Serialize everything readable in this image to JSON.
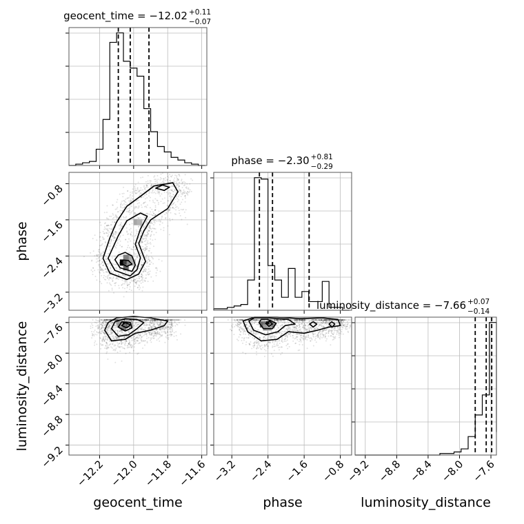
{
  "chart_data": {
    "type": "corner",
    "grid": true,
    "parameters": [
      {
        "name": "geocent_time",
        "median": -12.02,
        "err_plus": 0.11,
        "err_minus": 0.07,
        "title_text": "geocent_time = −12.02",
        "sup_text": "+0.11",
        "sub_text": "−0.07",
        "range": [
          -12.38,
          -11.57
        ],
        "quantile_lines": [
          -12.09,
          -12.02,
          -11.91
        ],
        "ticks": [
          -12.2,
          -12.0,
          -11.8,
          -11.6
        ],
        "tick_labels": [
          "−12.2",
          "−12.0",
          "−11.8",
          "−11.6"
        ],
        "hist": {
          "bins": [
            -12.38,
            -12.34,
            -12.3,
            -12.26,
            -12.22,
            -12.18,
            -12.14,
            -12.1,
            -12.06,
            -12.02,
            -11.98,
            -11.94,
            -11.9,
            -11.86,
            -11.82,
            -11.78,
            -11.74,
            -11.7,
            -11.66,
            -11.62,
            -11.58
          ],
          "counts": [
            0,
            1,
            2,
            3,
            12,
            34,
            91,
            98,
            77,
            72,
            66,
            42,
            25,
            14,
            10,
            6,
            4,
            2,
            1,
            0
          ]
        }
      },
      {
        "name": "phase",
        "median": -2.3,
        "err_plus": 0.81,
        "err_minus": 0.29,
        "title_text": "phase = −2.30",
        "sup_text": "+0.81",
        "sub_text": "−0.29",
        "range": [
          -3.6,
          -0.55
        ],
        "quantile_lines": [
          -2.59,
          -2.3,
          -1.49
        ],
        "ticks": [
          -3.2,
          -2.4,
          -1.6,
          -0.8
        ],
        "tick_labels": [
          "−3.2",
          "−2.4",
          "−1.6",
          "−0.8"
        ],
        "hist": {
          "bins": [
            -3.6,
            -3.45,
            -3.3,
            -3.15,
            -3.0,
            -2.85,
            -2.7,
            -2.55,
            -2.4,
            -2.25,
            -2.1,
            -1.95,
            -1.8,
            -1.65,
            -1.5,
            -1.35,
            -1.2,
            -1.05,
            -0.9,
            -0.75,
            -0.6
          ],
          "counts": [
            1,
            1,
            2,
            3,
            4,
            21,
            92,
            91,
            31,
            21,
            9,
            29,
            9,
            13,
            6,
            6,
            20,
            2,
            2,
            0
          ]
        }
      },
      {
        "name": "luminosity_distance",
        "median": -7.66,
        "err_plus": 0.07,
        "err_minus": 0.14,
        "title_text": "luminosity_distance = −7.66",
        "sup_text": "+0.07",
        "sub_text": "−0.14",
        "range": [
          -9.33,
          -7.53
        ],
        "quantile_lines": [
          -7.8,
          -7.66,
          -7.59
        ],
        "ticks": [
          -9.2,
          -8.8,
          -8.4,
          -8.0,
          -7.6
        ],
        "tick_labels": [
          "−9.2",
          "−8.8",
          "−8.4",
          "−8.0",
          "−7.6"
        ],
        "hist": {
          "bins": [
            -9.33,
            -9.24,
            -9.15,
            -9.06,
            -8.97,
            -8.88,
            -8.79,
            -8.7,
            -8.61,
            -8.52,
            -8.43,
            -8.34,
            -8.25,
            -8.16,
            -8.07,
            -7.98,
            -7.89,
            -7.8,
            -7.71,
            -7.62,
            -7.53
          ],
          "counts": [
            0,
            0,
            0,
            0,
            0,
            0,
            0,
            0,
            0,
            0,
            0,
            0,
            1,
            1,
            2,
            4,
            12,
            26,
            39,
            86,
            15
          ]
        }
      }
    ],
    "pairs": [
      {
        "row": 1,
        "col": 0,
        "x": "geocent_time",
        "y": "phase",
        "scatter_seed": 7,
        "contours": [
          [
            [
              -12.18,
              -2.45
            ],
            [
              -12.14,
              -2.78
            ],
            [
              -12.04,
              -2.92
            ],
            [
              -11.97,
              -2.8
            ],
            [
              -11.93,
              -2.52
            ],
            [
              -11.97,
              -2.12
            ],
            [
              -11.94,
              -1.85
            ],
            [
              -11.9,
              -1.6
            ],
            [
              -11.8,
              -1.35
            ],
            [
              -11.74,
              -0.98
            ],
            [
              -11.77,
              -0.78
            ],
            [
              -11.88,
              -0.85
            ],
            [
              -11.95,
              -1.05
            ],
            [
              -12.04,
              -1.3
            ],
            [
              -12.1,
              -1.65
            ],
            [
              -12.14,
              -2.0
            ]
          ],
          [
            [
              -12.15,
              -2.45
            ],
            [
              -12.11,
              -2.72
            ],
            [
              -12.02,
              -2.84
            ],
            [
              -11.98,
              -2.7
            ],
            [
              -11.96,
              -2.44
            ],
            [
              -11.99,
              -2.14
            ],
            [
              -11.96,
              -1.8
            ],
            [
              -11.92,
              -1.52
            ],
            [
              -11.96,
              -1.45
            ],
            [
              -12.04,
              -1.62
            ],
            [
              -12.09,
              -1.95
            ],
            [
              -12.12,
              -2.2
            ]
          ],
          [
            [
              -12.11,
              -2.48
            ],
            [
              -12.08,
              -2.66
            ],
            [
              -12.01,
              -2.74
            ],
            [
              -11.99,
              -2.6
            ],
            [
              -12.01,
              -2.4
            ],
            [
              -12.05,
              -2.32
            ],
            [
              -12.09,
              -2.38
            ]
          ],
          [
            [
              -12.08,
              -2.55
            ],
            [
              -12.04,
              -2.63
            ],
            [
              -12.01,
              -2.58
            ],
            [
              -12.03,
              -2.5
            ],
            [
              -12.06,
              -2.49
            ]
          ],
          [
            [
              -11.87,
              -0.9
            ],
            [
              -11.82,
              -0.95
            ],
            [
              -11.79,
              -0.88
            ],
            [
              -11.83,
              -0.83
            ]
          ]
        ],
        "density_cells": [
          {
            "x": -12.065,
            "y": -2.545,
            "shade": 0.95
          },
          {
            "x": -12.045,
            "y": -2.545,
            "shade": 0.75
          },
          {
            "x": -12.045,
            "y": -2.65,
            "shade": 0.6
          },
          {
            "x": -12.025,
            "y": -2.545,
            "shade": 0.45
          },
          {
            "x": -12.025,
            "y": -2.44,
            "shade": 0.35
          },
          {
            "x": -12.045,
            "y": -2.44,
            "shade": 0.5
          },
          {
            "x": -12.005,
            "y": -2.545,
            "shade": 0.3
          },
          {
            "x": -11.985,
            "y": -1.65,
            "shade": 0.35
          },
          {
            "x": -11.965,
            "y": -1.65,
            "shade": 0.3
          }
        ]
      },
      {
        "row": 2,
        "col": 0,
        "x": "geocent_time",
        "y": "luminosity_distance",
        "scatter_seed": 13,
        "contours": [
          [
            [
              -12.17,
              -7.7
            ],
            [
              -12.13,
              -7.84
            ],
            [
              -12.05,
              -7.82
            ],
            [
              -11.99,
              -7.74
            ],
            [
              -11.9,
              -7.7
            ],
            [
              -11.82,
              -7.64
            ],
            [
              -11.8,
              -7.58
            ],
            [
              -11.9,
              -7.54
            ],
            [
              -12.0,
              -7.52
            ],
            [
              -12.1,
              -7.54
            ],
            [
              -12.15,
              -7.6
            ]
          ],
          [
            [
              -12.13,
              -7.68
            ],
            [
              -12.09,
              -7.78
            ],
            [
              -12.03,
              -7.76
            ],
            [
              -11.98,
              -7.68
            ],
            [
              -11.94,
              -7.6
            ],
            [
              -11.98,
              -7.56
            ],
            [
              -12.05,
              -7.55
            ],
            [
              -12.11,
              -7.59
            ]
          ],
          [
            [
              -12.09,
              -7.66
            ],
            [
              -12.05,
              -7.71
            ],
            [
              -12.01,
              -7.67
            ],
            [
              -12.02,
              -7.6
            ],
            [
              -12.07,
              -7.59
            ]
          ],
          [
            [
              -12.07,
              -7.64
            ],
            [
              -12.04,
              -7.67
            ],
            [
              -12.02,
              -7.63
            ],
            [
              -12.05,
              -7.6
            ]
          ]
        ],
        "density_cells": [
          {
            "x": -12.06,
            "y": -7.625,
            "shade": 0.95
          },
          {
            "x": -12.04,
            "y": -7.625,
            "shade": 0.65
          },
          {
            "x": -12.06,
            "y": -7.665,
            "shade": 0.55
          },
          {
            "x": -12.08,
            "y": -7.625,
            "shade": 0.4
          },
          {
            "x": -12.02,
            "y": -7.625,
            "shade": 0.35
          }
        ]
      },
      {
        "row": 2,
        "col": 1,
        "x": "phase",
        "y": "luminosity_distance",
        "scatter_seed": 29,
        "contours": [
          [
            [
              -2.95,
              -7.58
            ],
            [
              -2.85,
              -7.72
            ],
            [
              -2.55,
              -7.84
            ],
            [
              -2.2,
              -7.82
            ],
            [
              -1.95,
              -7.72
            ],
            [
              -1.6,
              -7.74
            ],
            [
              -1.3,
              -7.7
            ],
            [
              -1.05,
              -7.66
            ],
            [
              -0.8,
              -7.64
            ],
            [
              -0.85,
              -7.56
            ],
            [
              -1.2,
              -7.54
            ],
            [
              -1.7,
              -7.55
            ],
            [
              -2.2,
              -7.53
            ],
            [
              -2.7,
              -7.53
            ]
          ],
          [
            [
              -2.82,
              -7.58
            ],
            [
              -2.72,
              -7.7
            ],
            [
              -2.45,
              -7.76
            ],
            [
              -2.18,
              -7.72
            ],
            [
              -2.02,
              -7.64
            ],
            [
              -1.8,
              -7.62
            ],
            [
              -1.95,
              -7.56
            ],
            [
              -2.4,
              -7.54
            ],
            [
              -2.7,
              -7.54
            ]
          ],
          [
            [
              -2.6,
              -7.6
            ],
            [
              -2.5,
              -7.68
            ],
            [
              -2.3,
              -7.68
            ],
            [
              -2.22,
              -7.61
            ],
            [
              -2.4,
              -7.56
            ],
            [
              -2.55,
              -7.56
            ]
          ],
          [
            [
              -2.45,
              -7.61
            ],
            [
              -2.38,
              -7.65
            ],
            [
              -2.3,
              -7.62
            ],
            [
              -2.37,
              -7.58
            ]
          ],
          [
            [
              -1.48,
              -7.62
            ],
            [
              -1.4,
              -7.66
            ],
            [
              -1.32,
              -7.62
            ],
            [
              -1.4,
              -7.59
            ]
          ],
          [
            [
              -1.05,
              -7.62
            ],
            [
              -0.98,
              -7.66
            ],
            [
              -0.92,
              -7.62
            ],
            [
              -0.99,
              -7.59
            ]
          ]
        ],
        "density_cells": [
          {
            "x": -2.52,
            "y": -7.625,
            "shade": 0.6
          },
          {
            "x": -2.45,
            "y": -7.625,
            "shade": 0.55
          },
          {
            "x": -2.38,
            "y": -7.625,
            "shade": 0.95
          },
          {
            "x": -2.31,
            "y": -7.625,
            "shade": 0.5
          },
          {
            "x": -2.45,
            "y": -7.665,
            "shade": 0.4
          },
          {
            "x": -2.38,
            "y": -7.665,
            "shade": 0.35
          }
        ]
      }
    ]
  }
}
